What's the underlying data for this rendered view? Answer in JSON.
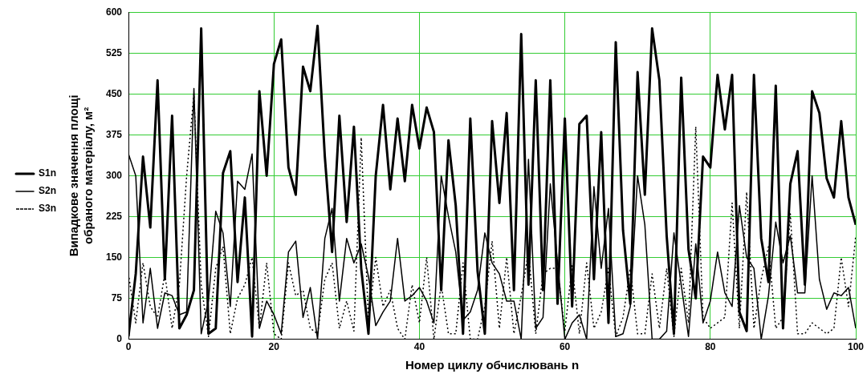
{
  "chart_data": {
    "type": "line",
    "xlabel": "Номер циклу обчислювань n",
    "ylabel": "Випадкове значення площі\nобраного матеріалу, м²",
    "x": [
      0,
      1,
      2,
      3,
      4,
      5,
      6,
      7,
      8,
      9,
      10,
      11,
      12,
      13,
      14,
      15,
      16,
      17,
      18,
      19,
      20,
      21,
      22,
      23,
      24,
      25,
      26,
      27,
      28,
      29,
      30,
      31,
      32,
      33,
      34,
      35,
      36,
      37,
      38,
      39,
      40,
      41,
      42,
      43,
      44,
      45,
      46,
      47,
      48,
      49,
      50,
      51,
      52,
      53,
      54,
      55,
      56,
      57,
      58,
      59,
      60,
      61,
      62,
      63,
      64,
      65,
      66,
      67,
      68,
      69,
      70,
      71,
      72,
      73,
      74,
      75,
      76,
      77,
      78,
      79,
      80,
      81,
      82,
      83,
      84,
      85,
      86,
      87,
      88,
      89,
      90,
      91,
      92,
      93,
      94,
      95,
      96,
      97,
      98,
      99,
      100
    ],
    "series": [
      {
        "name": "S1n",
        "color": "#000000",
        "line_style": "solid",
        "values": [
          5,
          120,
          335,
          205,
          475,
          110,
          410,
          20,
          45,
          90,
          570,
          10,
          20,
          305,
          345,
          105,
          260,
          5,
          455,
          300,
          505,
          550,
          315,
          265,
          500,
          455,
          575,
          335,
          160,
          410,
          215,
          390,
          130,
          10,
          300,
          430,
          275,
          405,
          290,
          430,
          350,
          425,
          380,
          90,
          365,
          245,
          10,
          405,
          125,
          10,
          400,
          250,
          415,
          90,
          560,
          100,
          475,
          90,
          475,
          65,
          405,
          60,
          395,
          410,
          110,
          380,
          30,
          545,
          200,
          65,
          490,
          265,
          570,
          475,
          190,
          10,
          480,
          165,
          75,
          335,
          315,
          485,
          385,
          485,
          50,
          15,
          485,
          185,
          105,
          465,
          20,
          285,
          345,
          100,
          455,
          415,
          295,
          260,
          400,
          260,
          210
        ]
      },
      {
        "name": "S2n",
        "color": "#000000",
        "line_style": "solid",
        "values": [
          340,
          300,
          30,
          130,
          20,
          85,
          80,
          45,
          50,
          460,
          10,
          70,
          235,
          195,
          60,
          290,
          275,
          340,
          20,
          70,
          45,
          10,
          160,
          180,
          40,
          95,
          0,
          185,
          240,
          70,
          185,
          140,
          175,
          115,
          25,
          50,
          70,
          185,
          70,
          80,
          95,
          70,
          30,
          300,
          225,
          160,
          35,
          50,
          90,
          195,
          140,
          120,
          70,
          70,
          0,
          330,
          20,
          40,
          285,
          140,
          0,
          30,
          45,
          0,
          280,
          130,
          240,
          5,
          10,
          60,
          300,
          210,
          0,
          0,
          15,
          195,
          100,
          5,
          175,
          30,
          70,
          160,
          85,
          60,
          245,
          150,
          130,
          0,
          80,
          215,
          140,
          190,
          85,
          85,
          300,
          110,
          55,
          85,
          80,
          95,
          20
        ]
      },
      {
        "name": "S3n",
        "color": "#000000",
        "line_style": "dotted",
        "values": [
          120,
          30,
          140,
          60,
          40,
          120,
          20,
          100,
          300,
          450,
          100,
          5,
          130,
          170,
          10,
          75,
          100,
          150,
          20,
          140,
          10,
          0,
          140,
          80,
          90,
          20,
          10,
          110,
          140,
          20,
          70,
          15,
          370,
          30,
          150,
          60,
          90,
          20,
          0,
          100,
          30,
          150,
          0,
          100,
          10,
          10,
          140,
          0,
          0,
          60,
          180,
          20,
          150,
          10,
          80,
          160,
          10,
          120,
          130,
          130,
          15,
          135,
          10,
          140,
          20,
          50,
          130,
          5,
          40,
          130,
          10,
          10,
          120,
          20,
          130,
          5,
          130,
          30,
          390,
          40,
          20,
          30,
          40,
          250,
          20,
          270,
          20,
          110,
          170,
          20,
          40,
          230,
          10,
          10,
          30,
          20,
          10,
          20,
          150,
          60,
          190
        ]
      }
    ],
    "xlim": [
      0,
      100
    ],
    "xticks": [
      0,
      20,
      40,
      60,
      80,
      100
    ],
    "ylim": [
      0,
      600
    ],
    "yticks": [
      0,
      75,
      150,
      225,
      300,
      375,
      450,
      525,
      600
    ],
    "grid": true,
    "legend": "left",
    "marker": "none"
  }
}
